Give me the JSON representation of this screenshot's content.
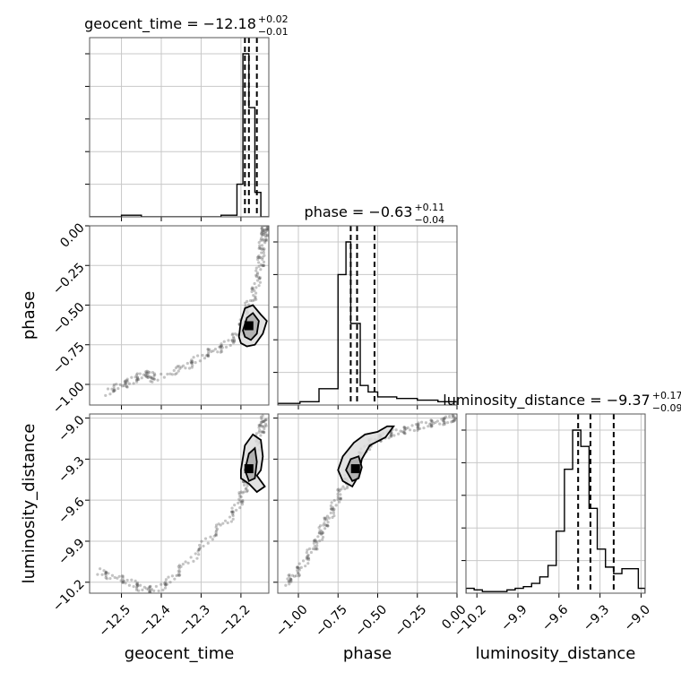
{
  "chart_data": {
    "type": "corner",
    "parameters": [
      "geocent_time",
      "phase",
      "luminosity_distance"
    ],
    "titles": [
      {
        "param": "geocent_time",
        "text": "geocent_time = −12.18",
        "sup": "+0.02",
        "sub": "−0.01"
      },
      {
        "param": "phase",
        "text": "phase = −0.63",
        "sup": "+0.11",
        "sub": "−0.04"
      },
      {
        "param": "luminosity_distance",
        "text": "luminosity_distance = −9.37",
        "sup": "+0.17",
        "sub": "−0.09"
      }
    ],
    "axes": {
      "geocent_time": {
        "range": [
          -12.58,
          -12.13
        ],
        "ticks": [
          -12.5,
          -12.4,
          -12.3,
          -12.2
        ],
        "tick_labels": [
          "−12.5",
          "−12.4",
          "−12.3",
          "−12.2"
        ],
        "label": "geocent_time"
      },
      "phase": {
        "range": [
          -1.13,
          0.0
        ],
        "ticks": [
          -1.0,
          -0.75,
          -0.5,
          -0.25,
          0.0
        ],
        "tick_labels": [
          "−1.00",
          "−0.75",
          "−0.50",
          "−0.25",
          "0.00"
        ],
        "label": "phase"
      },
      "luminosity_distance": {
        "range": [
          -10.28,
          -8.97
        ],
        "ticks": [
          -10.2,
          -9.9,
          -9.6,
          -9.3,
          -9.0
        ],
        "tick_labels": [
          "−10.2",
          "−9.9",
          "−9.6",
          "−9.3",
          "−9.0"
        ],
        "label": "luminosity_distance"
      }
    },
    "quantile_lines": {
      "geocent_time": [
        -12.19,
        -12.18,
        -12.16
      ],
      "phase": [
        -0.67,
        -0.63,
        -0.52
      ],
      "luminosity_distance": [
        -9.46,
        -9.37,
        -9.2
      ]
    },
    "histograms": {
      "geocent_time": {
        "edges": [
          -12.58,
          -12.5,
          -12.49,
          -12.47,
          -12.45,
          -12.25,
          -12.23,
          -12.21,
          -12.195,
          -12.18,
          -12.165,
          -12.15,
          -12.135,
          -12.13
        ],
        "counts": [
          0,
          0.01,
          0.01,
          0.01,
          0,
          0.01,
          0.01,
          0.2,
          1.0,
          0.67,
          0.15,
          0,
          0
        ]
      },
      "phase": {
        "edges": [
          -1.13,
          -0.99,
          -0.87,
          -0.75,
          -0.7,
          -0.67,
          -0.61,
          -0.56,
          -0.5,
          -0.38,
          -0.25,
          -0.12,
          0.0
        ],
        "counts": [
          0.01,
          0.02,
          0.1,
          0.8,
          1.0,
          0.5,
          0.12,
          0.08,
          0.05,
          0.04,
          0.03,
          0.02
        ]
      },
      "luminosity_distance": {
        "edges": [
          -10.28,
          -10.22,
          -10.16,
          -10.1,
          -10.04,
          -9.98,
          -9.92,
          -9.86,
          -9.8,
          -9.74,
          -9.68,
          -9.62,
          -9.56,
          -9.5,
          -9.44,
          -9.38,
          -9.32,
          -9.26,
          -9.2,
          -9.14,
          -9.08,
          -9.02,
          -8.97
        ],
        "counts": [
          0.03,
          0.02,
          0.01,
          0.01,
          0.01,
          0.02,
          0.03,
          0.04,
          0.06,
          0.1,
          0.17,
          0.38,
          0.76,
          1.0,
          0.9,
          0.52,
          0.27,
          0.16,
          0.12,
          0.15,
          0.15,
          0.03
        ]
      }
    },
    "scatter": {
      "phase_vs_geocent_time": {
        "x": [
          -12.54,
          -12.5,
          -12.48,
          -12.45,
          -12.43,
          -12.42,
          -12.35,
          -12.32,
          -12.28,
          -12.25,
          -12.22,
          -12.2,
          -12.19,
          -12.17,
          -12.16,
          -12.15,
          -12.15,
          -12.145,
          -12.14,
          -12.14,
          -12.14
        ],
        "y": [
          -1.05,
          -1.01,
          -0.98,
          -0.95,
          -0.93,
          -0.97,
          -0.9,
          -0.86,
          -0.8,
          -0.77,
          -0.72,
          -0.66,
          -0.55,
          -0.45,
          -0.35,
          -0.25,
          -0.18,
          -0.1,
          -0.05,
          -0.02,
          0.0
        ]
      },
      "luminosity_distance_vs_geocent_time": {
        "x": [
          -12.56,
          -12.52,
          -12.48,
          -12.45,
          -12.42,
          -12.38,
          -12.35,
          -12.3,
          -12.26,
          -12.22,
          -12.2,
          -12.19,
          -12.18,
          -12.17,
          -12.16,
          -12.15,
          -12.145,
          -12.14
        ],
        "y": [
          -10.12,
          -10.16,
          -10.2,
          -10.24,
          -10.26,
          -10.2,
          -10.1,
          -9.95,
          -9.82,
          -9.7,
          -9.6,
          -9.5,
          -9.4,
          -9.32,
          -9.2,
          -9.1,
          -9.04,
          -9.0
        ]
      },
      "luminosity_distance_vs_phase": {
        "x": [
          -1.08,
          -1.03,
          -0.98,
          -0.92,
          -0.88,
          -0.85,
          -0.82,
          -0.78,
          -0.74,
          -0.7,
          -0.66,
          -0.62,
          -0.56,
          -0.5,
          -0.44,
          -0.36,
          -0.28,
          -0.2,
          -0.12,
          -0.05,
          0.0
        ],
        "y": [
          -10.2,
          -10.16,
          -10.08,
          -9.98,
          -9.9,
          -9.82,
          -9.75,
          -9.66,
          -9.56,
          -9.46,
          -9.36,
          -9.28,
          -9.2,
          -9.15,
          -9.12,
          -9.1,
          -9.07,
          -9.05,
          -9.03,
          -9.01,
          -9.0
        ]
      }
    },
    "contours": {
      "phase_vs_geocent_time": [
        {
          "x": [
            -12.205,
            -12.2,
            -12.19,
            -12.17,
            -12.15,
            -12.135,
            -12.145,
            -12.165,
            -12.185,
            -12.2,
            -12.205
          ],
          "y": [
            -0.7,
            -0.6,
            -0.52,
            -0.5,
            -0.56,
            -0.6,
            -0.68,
            -0.75,
            -0.76,
            -0.74,
            -0.7
          ]
        },
        {
          "x": [
            -12.195,
            -12.185,
            -12.17,
            -12.155,
            -12.16,
            -12.175,
            -12.19,
            -12.195
          ],
          "y": [
            -0.66,
            -0.58,
            -0.55,
            -0.6,
            -0.68,
            -0.72,
            -0.7,
            -0.66
          ]
        }
      ],
      "luminosity_distance_vs_geocent_time": [
        {
          "x": [
            -12.2,
            -12.19,
            -12.17,
            -12.15,
            -12.145,
            -12.15,
            -12.16,
            -12.14,
            -12.16,
            -12.18,
            -12.2,
            -12.2
          ],
          "y": [
            -9.38,
            -9.2,
            -9.12,
            -9.16,
            -9.28,
            -9.38,
            -9.42,
            -9.5,
            -9.54,
            -9.48,
            -9.44,
            -9.38
          ]
        },
        {
          "x": [
            -12.19,
            -12.18,
            -12.165,
            -12.16,
            -12.165,
            -12.18,
            -12.19
          ],
          "y": [
            -9.38,
            -9.26,
            -9.22,
            -9.32,
            -9.44,
            -9.46,
            -9.38
          ]
        }
      ],
      "luminosity_distance_vs_phase": [
        {
          "x": [
            -0.75,
            -0.72,
            -0.65,
            -0.58,
            -0.5,
            -0.44,
            -0.4,
            -0.45,
            -0.55,
            -0.6,
            -0.62,
            -0.66,
            -0.72,
            -0.75
          ],
          "y": [
            -9.38,
            -9.28,
            -9.18,
            -9.12,
            -9.1,
            -9.06,
            -9.06,
            -9.14,
            -9.2,
            -9.3,
            -9.42,
            -9.5,
            -9.46,
            -9.38
          ]
        },
        {
          "x": [
            -0.7,
            -0.67,
            -0.62,
            -0.6,
            -0.62,
            -0.66,
            -0.7
          ],
          "y": [
            -9.38,
            -9.3,
            -9.28,
            -9.36,
            -9.44,
            -9.46,
            -9.38
          ]
        }
      ]
    },
    "peaks": {
      "phase_vs_geocent_time": {
        "x": -12.18,
        "y": -0.63
      },
      "luminosity_distance_vs_geocent_time": {
        "x": -12.18,
        "y": -9.37
      },
      "luminosity_distance_vs_phase": {
        "x": -0.64,
        "y": -9.37
      }
    },
    "grid": true,
    "legend": "none"
  }
}
